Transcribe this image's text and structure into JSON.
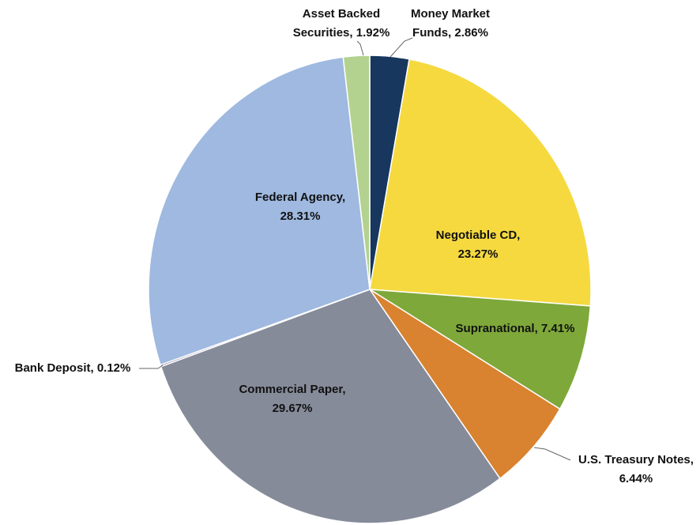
{
  "chart_data": {
    "type": "pie",
    "categories": [
      "Money Market Funds",
      "Negotiable CD",
      "Supranational",
      "U.S. Treasury Notes",
      "Commercial Paper",
      "Bank Deposit",
      "Federal Agency",
      "Asset Backed Securities"
    ],
    "values": [
      2.86,
      23.27,
      7.41,
      6.44,
      29.67,
      0.12,
      28.31,
      1.92
    ],
    "value_labels": [
      "2.86%",
      "23.27%",
      "7.41%",
      "6.44%",
      "29.67%",
      "0.12%",
      "28.31%",
      "1.92%"
    ],
    "colors": [
      "#17375e",
      "#f5d93f",
      "#7ea83a",
      "#d9822f",
      "#868b9a",
      "#6f5a7a",
      "#9fb9e0",
      "#b3d28f"
    ]
  }
}
